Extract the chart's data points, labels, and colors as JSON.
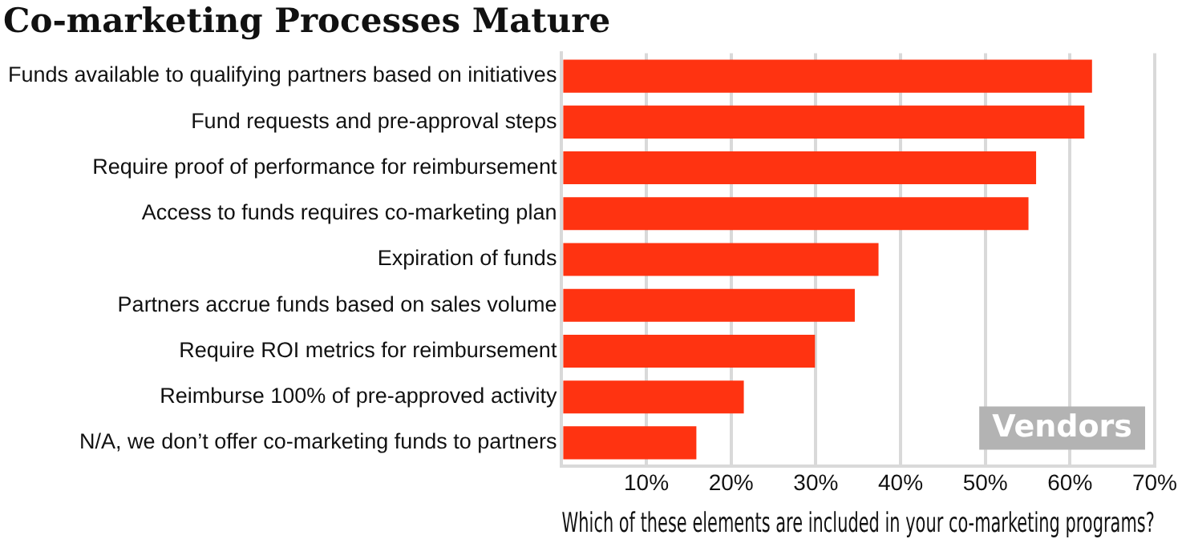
{
  "chart_data": {
    "type": "bar",
    "orientation": "horizontal",
    "title": "Co-marketing Processes Mature",
    "xlabel": "Which of these elements are included in your co-marketing programs?",
    "categories": [
      "Funds available to qualifying partners based on initiatives",
      "Fund requests and pre-approval steps",
      "Require proof of performance for reimbursement",
      "Access to funds requires co-marketing plan",
      "Expiration of funds",
      "Partners accrue funds based on sales volume",
      "Require ROI metrics for reimbursement",
      "Reimburse 100% of pre-approved activity",
      "N/A, we don’t offer co-marketing funds to partners"
    ],
    "values": [
      62.6,
      61.7,
      56.0,
      55.1,
      37.4,
      34.6,
      29.9,
      21.5,
      15.9
    ],
    "color": "#ff3311",
    "xlim": [
      0,
      70
    ],
    "xticks": [
      {
        "value": 0,
        "label": null
      },
      {
        "value": 10,
        "label": "10%"
      },
      {
        "value": 20,
        "label": "20%"
      },
      {
        "value": 30,
        "label": "30%"
      },
      {
        "value": 40,
        "label": "40%"
      },
      {
        "value": 50,
        "label": "50%"
      },
      {
        "value": 60,
        "label": "60%"
      },
      {
        "value": 70,
        "label": "70%"
      }
    ],
    "grid": "x",
    "legend": false,
    "annotations": [
      "Vendors"
    ]
  }
}
